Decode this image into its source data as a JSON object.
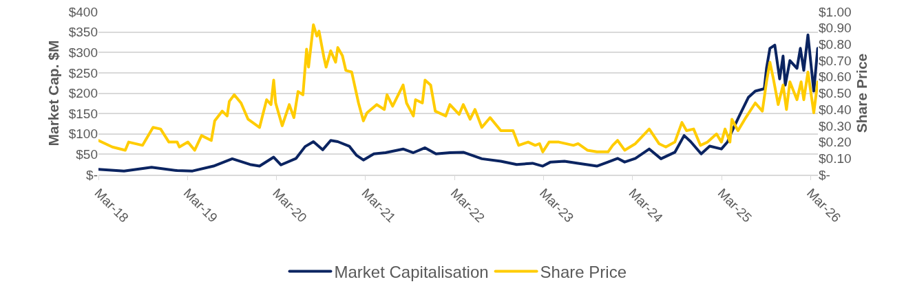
{
  "chart_data": {
    "type": "line",
    "ylabel": "Market Cap. $M",
    "y2label": "Share Price",
    "xlim": [
      "2018-03-01",
      "2026-03-31"
    ],
    "xticks": [
      {
        "value": "2018-03-01",
        "label": "Mar-18"
      },
      {
        "value": "2019-03-01",
        "label": "Mar-19"
      },
      {
        "value": "2020-03-01",
        "label": "Mar-20"
      },
      {
        "value": "2021-03-01",
        "label": "Mar-21"
      },
      {
        "value": "2022-03-01",
        "label": "Mar-22"
      },
      {
        "value": "2023-03-01",
        "label": "Mar-23"
      },
      {
        "value": "2024-03-01",
        "label": "Mar-24"
      },
      {
        "value": "2025-03-01",
        "label": "Mar-25"
      },
      {
        "value": "2026-03-01",
        "label": "Mar-26"
      }
    ],
    "ylim": [
      0,
      400
    ],
    "yticks": [
      {
        "value": 0,
        "label": "$-"
      },
      {
        "value": 50,
        "label": "$50"
      },
      {
        "value": 100,
        "label": "$100"
      },
      {
        "value": 150,
        "label": "$150"
      },
      {
        "value": 200,
        "label": "$200"
      },
      {
        "value": 250,
        "label": "$250"
      },
      {
        "value": 300,
        "label": "$300"
      },
      {
        "value": 350,
        "label": "$350"
      },
      {
        "value": 400,
        "label": "$400"
      }
    ],
    "y2lim": [
      0,
      1
    ],
    "y2ticks": [
      {
        "value": 0,
        "label": "$-"
      },
      {
        "value": 0.1,
        "label": "$0.10"
      },
      {
        "value": 0.2,
        "label": "$0.20"
      },
      {
        "value": 0.3,
        "label": "$0.30"
      },
      {
        "value": 0.4,
        "label": "$0.40"
      },
      {
        "value": 0.5,
        "label": "$0.50"
      },
      {
        "value": 0.6,
        "label": "$0.60"
      },
      {
        "value": 0.7,
        "label": "$0.70"
      },
      {
        "value": 0.8,
        "label": "$0.80"
      },
      {
        "value": 0.9,
        "label": "$0.90"
      },
      {
        "value": 1,
        "label": "$1.00"
      }
    ],
    "grid": "y",
    "legend": "bottom",
    "line_style": "solid",
    "series": [
      {
        "name": "Market Capitalisation",
        "color": "#0b2461",
        "x": [
          "2018-03-01",
          "2018-06-14",
          "2018-10-05",
          "2019-01-18",
          "2019-03-22",
          "2019-06-16",
          "2019-09-01",
          "2019-11-13",
          "2019-12-22",
          "2020-02-18",
          "2020-03-19",
          "2020-05-20",
          "2020-06-26",
          "2020-07-30",
          "2020-09-06",
          "2020-10-09",
          "2020-11-07",
          "2020-12-24",
          "2021-01-22",
          "2021-02-20",
          "2021-04-04",
          "2021-05-22",
          "2021-08-02",
          "2021-09-13",
          "2021-10-31",
          "2021-12-15",
          "2022-02-10",
          "2022-04-06",
          "2022-06-21",
          "2022-09-07",
          "2022-11-11",
          "2023-01-15",
          "2023-02-26",
          "2023-03-30",
          "2023-05-26",
          "2023-07-21",
          "2023-10-06",
          "2023-11-21",
          "2023-12-30",
          "2024-01-28",
          "2024-03-12",
          "2024-05-08",
          "2024-06-25",
          "2024-08-21",
          "2024-09-28",
          "2024-10-25",
          "2024-12-07",
          "2025-01-11",
          "2025-02-28",
          "2025-03-26",
          "2025-04-04",
          "2025-05-10",
          "2025-06-19",
          "2025-07-17",
          "2025-08-23",
          "2025-09-01",
          "2025-09-15",
          "2025-10-05",
          "2025-10-25",
          "2025-11-08",
          "2025-11-17",
          "2025-12-06",
          "2026-01-04",
          "2026-01-18",
          "2026-02-01",
          "2026-02-18",
          "2026-03-14",
          "2026-03-30"
        ],
        "values": [
          13,
          9,
          18,
          10,
          9,
          21,
          39,
          25,
          21,
          43,
          24,
          40,
          69,
          81,
          61,
          84,
          81,
          70,
          48,
          36,
          51,
          54,
          63,
          54,
          66,
          51,
          54,
          55,
          39,
          33,
          25,
          28,
          21,
          31,
          33,
          28,
          21,
          31,
          40,
          31,
          40,
          63,
          39,
          55,
          96,
          81,
          51,
          70,
          63,
          81,
          96,
          141,
          190,
          205,
          211,
          261,
          310,
          318,
          235,
          291,
          220,
          280,
          261,
          310,
          256,
          343,
          205,
          310
        ]
      },
      {
        "name": "Share Price",
        "color": "#ffcc00",
        "axis": "y2",
        "x": [
          "2018-03-01",
          "2018-04-27",
          "2018-06-19",
          "2018-07-03",
          "2018-08-29",
          "2018-10-11",
          "2018-11-11",
          "2018-12-15",
          "2019-01-18",
          "2019-01-27",
          "2019-03-03",
          "2019-03-31",
          "2019-04-28",
          "2019-06-07",
          "2019-06-21",
          "2019-07-22",
          "2019-08-11",
          "2019-08-20",
          "2019-09-09",
          "2019-10-07",
          "2019-11-05",
          "2019-12-22",
          "2020-01-20",
          "2020-02-07",
          "2020-02-18",
          "2020-02-26",
          "2020-03-24",
          "2020-04-22",
          "2020-05-11",
          "2020-05-28",
          "2020-06-17",
          "2020-07-02",
          "2020-07-10",
          "2020-07-30",
          "2020-08-13",
          "2020-08-22",
          "2020-09-11",
          "2020-09-20",
          "2020-10-09",
          "2020-10-29",
          "2020-11-07",
          "2020-11-26",
          "2020-12-10",
          "2021-01-03",
          "2021-01-31",
          "2021-02-20",
          "2021-03-07",
          "2021-04-16",
          "2021-05-17",
          "2021-05-28",
          "2021-06-20",
          "2021-08-02",
          "2021-08-16",
          "2021-09-13",
          "2021-09-22",
          "2021-10-20",
          "2021-10-31",
          "2021-11-23",
          "2021-12-12",
          "2022-01-24",
          "2022-02-10",
          "2022-03-20",
          "2022-04-06",
          "2022-05-04",
          "2022-05-24",
          "2022-06-21",
          "2022-07-25",
          "2022-09-07",
          "2022-10-27",
          "2022-11-19",
          "2022-12-28",
          "2023-01-26",
          "2023-02-13",
          "2023-02-26",
          "2023-03-24",
          "2023-05-03",
          "2023-07-02",
          "2023-07-21",
          "2023-08-28",
          "2023-10-06",
          "2023-11-21",
          "2023-12-10",
          "2023-12-30",
          "2024-01-28",
          "2024-03-12",
          "2024-05-08",
          "2024-06-17",
          "2024-07-15",
          "2024-08-21",
          "2024-09-19",
          "2024-10-08",
          "2024-11-06",
          "2024-12-04",
          "2025-01-02",
          "2025-02-08",
          "2025-02-28",
          "2025-03-15",
          "2025-04-04",
          "2025-04-12",
          "2025-05-07",
          "2025-06-08",
          "2025-07-17",
          "2025-08-15",
          "2025-09-01",
          "2025-09-15",
          "2025-09-29",
          "2025-10-19",
          "2025-11-08",
          "2025-11-22",
          "2025-12-06",
          "2026-01-04",
          "2026-01-21",
          "2026-02-01",
          "2026-02-18",
          "2026-03-14",
          "2026-03-30"
        ],
        "values": [
          0.21,
          0.17,
          0.15,
          0.2,
          0.18,
          0.29,
          0.28,
          0.2,
          0.2,
          0.17,
          0.2,
          0.15,
          0.24,
          0.21,
          0.33,
          0.39,
          0.36,
          0.45,
          0.49,
          0.44,
          0.34,
          0.29,
          0.46,
          0.43,
          0.58,
          0.44,
          0.3,
          0.43,
          0.35,
          0.51,
          0.49,
          0.77,
          0.66,
          0.92,
          0.85,
          0.88,
          0.72,
          0.66,
          0.76,
          0.69,
          0.78,
          0.73,
          0.64,
          0.63,
          0.44,
          0.33,
          0.38,
          0.43,
          0.4,
          0.49,
          0.42,
          0.55,
          0.44,
          0.36,
          0.46,
          0.44,
          0.58,
          0.55,
          0.39,
          0.36,
          0.43,
          0.37,
          0.43,
          0.34,
          0.4,
          0.29,
          0.35,
          0.27,
          0.27,
          0.18,
          0.2,
          0.18,
          0.19,
          0.14,
          0.2,
          0.2,
          0.18,
          0.19,
          0.15,
          0.14,
          0.14,
          0.18,
          0.21,
          0.15,
          0.19,
          0.28,
          0.19,
          0.17,
          0.2,
          0.32,
          0.27,
          0.28,
          0.18,
          0.2,
          0.25,
          0.2,
          0.28,
          0.2,
          0.34,
          0.27,
          0.35,
          0.44,
          0.39,
          0.57,
          0.69,
          0.59,
          0.43,
          0.55,
          0.4,
          0.57,
          0.46,
          0.57,
          0.46,
          0.63,
          0.38,
          0.57
        ]
      }
    ]
  }
}
